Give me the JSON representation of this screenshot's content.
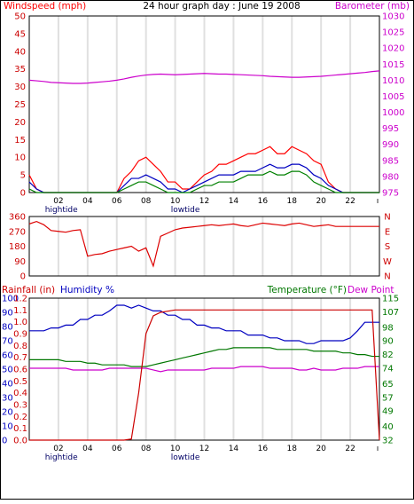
{
  "header": {
    "windspeed_label": "Windspeed (mph)",
    "title": "24 hour graph day : June 19 2008",
    "barometer_label": "Barometer (mb)"
  },
  "colors": {
    "windspeed_red": "#ff0000",
    "wind_blue": "#0000c0",
    "wind_green": "#008000",
    "barometer_magenta": "#cc00cc",
    "direction_red": "#dd0000",
    "rainfall_red": "#cc0000",
    "humidity_blue": "#0000c0",
    "temperature_green": "#007700",
    "dewpoint_magenta": "#cc00cc",
    "border": "#000000",
    "gridline": "#e0e0e0"
  },
  "chart_data": [
    {
      "type": "line",
      "name": "wind-barometer",
      "x": [
        0,
        0.5,
        1,
        1.5,
        2,
        2.5,
        3,
        3.5,
        4,
        4.5,
        5,
        5.5,
        6,
        6.5,
        7,
        7.5,
        8,
        8.5,
        9,
        9.5,
        10,
        10.5,
        11,
        11.5,
        12,
        12.5,
        13,
        13.5,
        14,
        14.5,
        15,
        15.5,
        16,
        16.5,
        17,
        17.5,
        18,
        18.5,
        19,
        19.5,
        20,
        20.5,
        21,
        21.5,
        22,
        22.5,
        23,
        23.5,
        24
      ],
      "xlim": [
        0,
        24
      ],
      "x_ticks": [
        "02",
        "04",
        "06",
        "08",
        "10",
        "12",
        "14",
        "16",
        "18",
        "20",
        "22"
      ],
      "x_tick_hours": [
        2,
        4,
        6,
        8,
        10,
        12,
        14,
        16,
        18,
        20,
        22
      ],
      "ylim_left": [
        0,
        50
      ],
      "y_ticks_left": [
        0,
        5,
        10,
        15,
        20,
        25,
        30,
        35,
        40,
        45,
        50
      ],
      "ylim_right": [
        975,
        1030
      ],
      "y_ticks_right": [
        975,
        980,
        985,
        990,
        995,
        1000,
        1005,
        1010,
        1015,
        1020,
        1025,
        1030
      ],
      "tide_labels": [
        {
          "text": "hightide",
          "hour": 2.2
        },
        {
          "text": "lowtide",
          "hour": 10.7
        }
      ],
      "series": [
        {
          "values": [
            5,
            1,
            0,
            0,
            0,
            0,
            0,
            0,
            0,
            0,
            0,
            0,
            0,
            4,
            6,
            9,
            10,
            8,
            6,
            3,
            3,
            1,
            1,
            3,
            5,
            6,
            8,
            8,
            9,
            10,
            11,
            11,
            12,
            13,
            11,
            11,
            13,
            12,
            11,
            9,
            8,
            3,
            1,
            0,
            0,
            0,
            0,
            0,
            0
          ]
        },
        {
          "values": [
            3,
            1,
            0,
            0,
            0,
            0,
            0,
            0,
            0,
            0,
            0,
            0,
            0,
            2,
            4,
            4,
            5,
            4,
            3,
            1,
            1,
            0,
            1,
            2,
            3,
            4,
            5,
            5,
            5,
            6,
            6,
            6,
            7,
            8,
            7,
            7,
            8,
            8,
            7,
            5,
            4,
            2,
            1,
            0,
            0,
            0,
            0,
            0,
            0
          ]
        },
        {
          "values": [
            1,
            0,
            0,
            0,
            0,
            0,
            0,
            0,
            0,
            0,
            0,
            0,
            0,
            1,
            2,
            3,
            3,
            2,
            1,
            0,
            0,
            0,
            0,
            1,
            2,
            2,
            3,
            3,
            3,
            4,
            5,
            5,
            5,
            6,
            5,
            5,
            6,
            6,
            5,
            3,
            2,
            1,
            0,
            0,
            0,
            0,
            0,
            0,
            0
          ]
        },
        {
          "values": [
            1010,
            1009.8,
            1009.6,
            1009.3,
            1009.2,
            1009.1,
            1009,
            1009,
            1009.1,
            1009.3,
            1009.5,
            1009.7,
            1010,
            1010.4,
            1010.9,
            1011.3,
            1011.6,
            1011.8,
            1011.9,
            1011.8,
            1011.7,
            1011.8,
            1011.9,
            1012,
            1012.1,
            1012,
            1011.9,
            1011.9,
            1011.8,
            1011.7,
            1011.6,
            1011.5,
            1011.4,
            1011.2,
            1011.1,
            1011,
            1010.9,
            1010.9,
            1011,
            1011.1,
            1011.2,
            1011.4,
            1011.6,
            1011.8,
            1012,
            1012.2,
            1012.4,
            1012.7,
            1012.9
          ]
        }
      ]
    },
    {
      "type": "line",
      "name": "wind-direction",
      "x": [
        0,
        0.5,
        1,
        1.5,
        2,
        2.5,
        3,
        3.5,
        4,
        4.5,
        5,
        5.5,
        6,
        6.5,
        7,
        7.5,
        8,
        8.5,
        9,
        9.5,
        10,
        10.5,
        11,
        11.5,
        12,
        12.5,
        13,
        13.5,
        14,
        14.5,
        15,
        15.5,
        16,
        16.5,
        17,
        17.5,
        18,
        18.5,
        19,
        19.5,
        20,
        20.5,
        21,
        21.5,
        22,
        22.5,
        23,
        23.5,
        24
      ],
      "xlim": [
        0,
        24
      ],
      "ylim": [
        0,
        360
      ],
      "y_ticks": [
        0,
        90,
        180,
        270,
        360
      ],
      "compass_labels": [
        "N",
        "W",
        "S",
        "E",
        "N"
      ],
      "series": [
        {
          "values": [
            315,
            330,
            310,
            275,
            270,
            265,
            275,
            280,
            120,
            130,
            135,
            150,
            160,
            170,
            180,
            150,
            170,
            60,
            240,
            260,
            280,
            290,
            295,
            300,
            305,
            310,
            305,
            310,
            315,
            305,
            300,
            310,
            320,
            315,
            310,
            305,
            315,
            320,
            310,
            300,
            305,
            310,
            300,
            300,
            300,
            300,
            300,
            300,
            300
          ]
        }
      ]
    },
    {
      "type": "line",
      "name": "rain-humidity-temperature",
      "x": [
        0,
        0.5,
        1,
        1.5,
        2,
        2.5,
        3,
        3.5,
        4,
        4.5,
        5,
        5.5,
        6,
        6.5,
        7,
        7.5,
        8,
        8.5,
        9,
        9.5,
        10,
        10.5,
        11,
        11.5,
        12,
        12.5,
        13,
        13.5,
        14,
        14.5,
        15,
        15.5,
        16,
        16.5,
        17,
        17.5,
        18,
        18.5,
        19,
        19.5,
        20,
        20.5,
        21,
        21.5,
        22,
        22.5,
        23,
        23.5,
        24
      ],
      "xlim": [
        0,
        24
      ],
      "x_ticks": [
        "02",
        "04",
        "06",
        "08",
        "10",
        "12",
        "14",
        "16",
        "18",
        "20",
        "22"
      ],
      "x_tick_hours": [
        2,
        4,
        6,
        8,
        10,
        12,
        14,
        16,
        18,
        20,
        22
      ],
      "tide_labels": [
        {
          "text": "hightide",
          "hour": 2.2
        },
        {
          "text": "lowtide",
          "hour": 10.7
        }
      ],
      "left_labels": {
        "rain": "Rainfall (in)",
        "humidity": "Humidity %"
      },
      "right_labels": {
        "temperature": "Temperature (°F)",
        "dewpoint": "Dew Point"
      },
      "ylim_rain": [
        0,
        1.2
      ],
      "y_ticks_rain": [
        "0.0",
        "0.1",
        "0.2",
        "0.3",
        "0.4",
        "0.5",
        "0.6",
        "0.7",
        "0.8",
        "0.9",
        "1.0",
        "1.1",
        "1.2"
      ],
      "ylim_humidity": [
        0,
        100
      ],
      "y_ticks_humidity": [
        0,
        10,
        20,
        30,
        40,
        50,
        60,
        70,
        80,
        90,
        100
      ],
      "ylim_temp": [
        32,
        115
      ],
      "y_ticks_temp": [
        32,
        40,
        49,
        57,
        65,
        74,
        82,
        90,
        98,
        107,
        115
      ],
      "series": [
        {
          "values": [
            0,
            0,
            0,
            0,
            0,
            0,
            0,
            0,
            0,
            0,
            0,
            0,
            0,
            0,
            0.01,
            0.4,
            0.9,
            1.05,
            1.08,
            1.09,
            1.1,
            1.1,
            1.1,
            1.1,
            1.1,
            1.1,
            1.1,
            1.1,
            1.1,
            1.1,
            1.1,
            1.1,
            1.1,
            1.1,
            1.1,
            1.1,
            1.1,
            1.1,
            1.1,
            1.1,
            1.1,
            1.1,
            1.1,
            1.1,
            1.1,
            1.1,
            1.1,
            1.1,
            0
          ]
        },
        {
          "values": [
            77,
            77,
            77,
            79,
            79,
            81,
            81,
            85,
            85,
            88,
            88,
            91,
            95,
            95,
            93,
            95,
            93,
            91,
            91,
            88,
            88,
            85,
            85,
            81,
            81,
            79,
            79,
            77,
            77,
            77,
            74,
            74,
            74,
            72,
            72,
            70,
            70,
            70,
            68,
            68,
            70,
            70,
            70,
            70,
            72,
            77,
            83,
            83,
            83
          ]
        },
        {
          "values": [
            79,
            79,
            79,
            79,
            79,
            78,
            78,
            78,
            77,
            77,
            76,
            76,
            76,
            76,
            75,
            75,
            75,
            76,
            77,
            78,
            79,
            80,
            81,
            82,
            83,
            84,
            85,
            85,
            86,
            86,
            86,
            86,
            86,
            86,
            85,
            85,
            85,
            85,
            85,
            84,
            84,
            84,
            84,
            83,
            83,
            82,
            82,
            81,
            81
          ]
        },
        {
          "values": [
            74,
            74,
            74,
            74,
            74,
            74,
            73,
            73,
            73,
            73,
            73,
            74,
            74,
            74,
            74,
            74,
            74,
            73,
            72,
            73,
            73,
            73,
            73,
            73,
            73,
            74,
            74,
            74,
            74,
            75,
            75,
            75,
            75,
            74,
            74,
            74,
            74,
            73,
            73,
            74,
            73,
            73,
            73,
            74,
            74,
            74,
            75,
            75,
            75
          ]
        }
      ]
    }
  ]
}
